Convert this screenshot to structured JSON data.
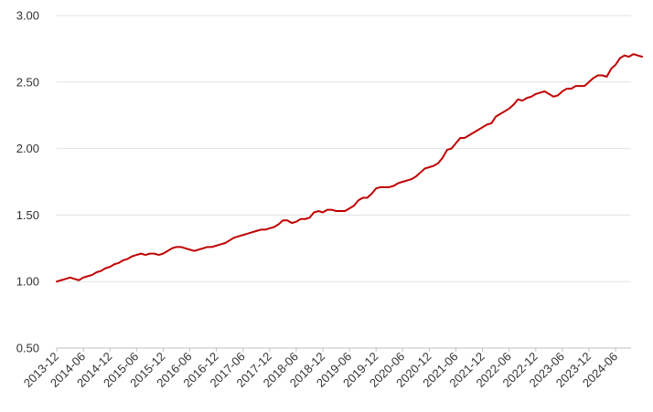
{
  "chart_data": {
    "type": "line",
    "title": "",
    "xlabel": "",
    "ylabel": "",
    "ylim": [
      0.5,
      3.0
    ],
    "yticks": [
      "0.50",
      "1.00",
      "1.50",
      "2.00",
      "2.50",
      "3.00"
    ],
    "xticks": [
      "2013-12",
      "2014-06",
      "2014-12",
      "2015-06",
      "2015-12",
      "2016-06",
      "2016-12",
      "2017-06",
      "2017-12",
      "2018-06",
      "2018-12",
      "2019-06",
      "2019-12",
      "2020-06",
      "2020-12",
      "2021-06",
      "2021-12",
      "2022-06",
      "2022-12",
      "2023-06",
      "2023-12",
      "2024-06"
    ],
    "grid": "horizontal",
    "legend": "none",
    "colors": {
      "line": "#c00000",
      "grid": "#e3e3e3",
      "axis": "#bfbfbf",
      "text": "#333333"
    },
    "series": [
      {
        "x_start": "2013-12",
        "frequency": "monthly",
        "values": [
          1.0,
          1.01,
          1.02,
          1.03,
          1.02,
          1.01,
          1.03,
          1.04,
          1.05,
          1.07,
          1.08,
          1.1,
          1.11,
          1.13,
          1.14,
          1.16,
          1.17,
          1.19,
          1.2,
          1.21,
          1.2,
          1.21,
          1.21,
          1.2,
          1.21,
          1.23,
          1.25,
          1.26,
          1.26,
          1.25,
          1.24,
          1.23,
          1.24,
          1.25,
          1.26,
          1.26,
          1.27,
          1.28,
          1.29,
          1.31,
          1.33,
          1.34,
          1.35,
          1.36,
          1.37,
          1.38,
          1.39,
          1.39,
          1.4,
          1.41,
          1.43,
          1.46,
          1.46,
          1.44,
          1.45,
          1.47,
          1.47,
          1.48,
          1.52,
          1.53,
          1.52,
          1.54,
          1.54,
          1.53,
          1.53,
          1.53,
          1.55,
          1.57,
          1.61,
          1.63,
          1.63,
          1.66,
          1.7,
          1.71,
          1.71,
          1.71,
          1.72,
          1.74,
          1.75,
          1.76,
          1.77,
          1.79,
          1.82,
          1.85,
          1.86,
          1.87,
          1.89,
          1.93,
          1.99,
          2.0,
          2.04,
          2.08,
          2.08,
          2.1,
          2.12,
          2.14,
          2.16,
          2.18,
          2.19,
          2.24,
          2.26,
          2.28,
          2.3,
          2.33,
          2.37,
          2.36,
          2.38,
          2.39,
          2.41,
          2.42,
          2.43,
          2.41,
          2.39,
          2.4,
          2.43,
          2.45,
          2.45,
          2.47,
          2.47,
          2.47,
          2.5,
          2.53,
          2.55,
          2.55,
          2.54,
          2.6,
          2.63,
          2.68,
          2.7,
          2.69,
          2.71,
          2.7,
          2.69
        ]
      }
    ]
  }
}
